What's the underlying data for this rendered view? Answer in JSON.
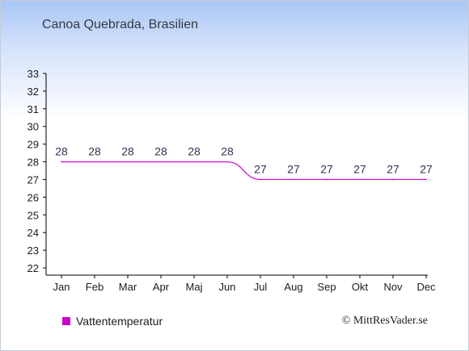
{
  "page": {
    "title": "Canoa Quebrada, Brasilien"
  },
  "legend": {
    "label": "Vattentemperatur",
    "color": "#cc00cc"
  },
  "credit": "© MittResVader.se",
  "chart_data": {
    "type": "line",
    "title": "Canoa Quebrada, Brasilien",
    "categories": [
      "Jan",
      "Feb",
      "Mar",
      "Apr",
      "Maj",
      "Jun",
      "Jul",
      "Aug",
      "Sep",
      "Okt",
      "Nov",
      "Dec"
    ],
    "series": [
      {
        "name": "Vattentemperatur",
        "values": [
          28,
          28,
          28,
          28,
          28,
          28,
          27,
          27,
          27,
          27,
          27,
          27
        ],
        "color": "#cc00cc"
      }
    ],
    "data_labels": [
      "28",
      "28",
      "28",
      "28",
      "28",
      "28",
      "27",
      "27",
      "27",
      "27",
      "27",
      "27"
    ],
    "ylim": [
      22,
      33
    ],
    "yticks": [
      22,
      23,
      24,
      25,
      26,
      27,
      28,
      29,
      30,
      31,
      32,
      33
    ],
    "grid": false,
    "legend_position": "bottom-left"
  }
}
